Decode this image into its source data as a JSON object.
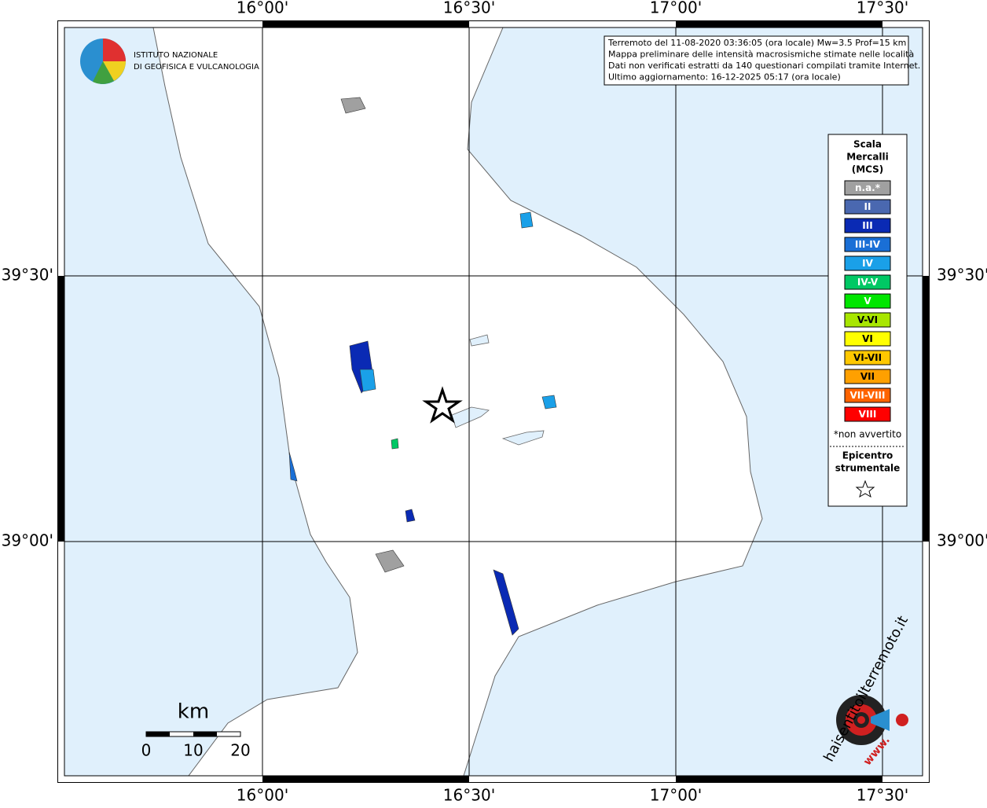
{
  "map": {
    "axis_labels": {
      "x": [
        "16°00'",
        "16°30'",
        "17°00'",
        "17°30'"
      ],
      "y": [
        "39°30'",
        "39°00'"
      ]
    },
    "info": [
      "Terremoto del 11-08-2020 03:36:05 (ora locale) Mw=3.5 Prof=15 km",
      "Mappa preliminare delle intensità macrosismiche stimate nelle località",
      "Dati non verificati estratti da 140 questionari compilati tramite Internet.",
      "Ultimo aggiornamento: 16-12-2025 05:17 (ora locale)"
    ],
    "logo": [
      "ISTITUTO NAZIONALE",
      "DI GEOFISICA E VULCANOLOGIA"
    ],
    "legend": {
      "title": [
        "Scala",
        "Mercalli",
        "(MCS)"
      ],
      "entries": [
        {
          "label": "n.a.*",
          "color": "#a0a0a0"
        },
        {
          "label": "II",
          "color": "#4a68b0"
        },
        {
          "label": "III",
          "color": "#0a2ab4"
        },
        {
          "label": "III-IV",
          "color": "#1a6fd6"
        },
        {
          "label": "IV",
          "color": "#1aa0e8"
        },
        {
          "label": "IV-V",
          "color": "#00c864"
        },
        {
          "label": "V",
          "color": "#00e600"
        },
        {
          "label": "V-VI",
          "color": "#a8e600"
        },
        {
          "label": "VI",
          "color": "#ffff00"
        },
        {
          "label": "VI-VII",
          "color": "#ffc800"
        },
        {
          "label": "VII",
          "color": "#ffa000"
        },
        {
          "label": "VII-VIII",
          "color": "#ff6400"
        },
        {
          "label": "VIII",
          "color": "#ff0000"
        }
      ],
      "note": "*non avvertito",
      "epicenter": [
        "Epicentro",
        "strumentale"
      ]
    },
    "scale_bar": {
      "unit": "km",
      "labels": [
        "0",
        "10",
        "20"
      ]
    },
    "site": {
      "name": "haisentitoilterremoto.it",
      "prefix": "www."
    }
  }
}
